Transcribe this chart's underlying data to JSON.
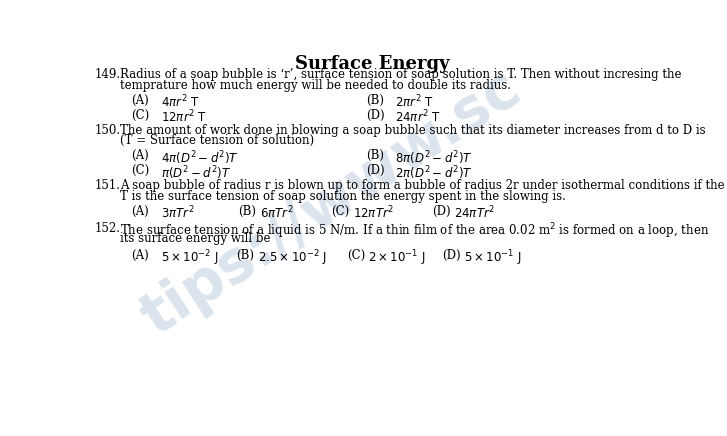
{
  "title": "Surface Energy",
  "background_color": "#ffffff",
  "watermark_color": "#b0c4d8",
  "q149_num": "149.",
  "q149_line1": "Radius of a soap bubble is ‘r’, surface tension of soap solution is T. Then without incresing the",
  "q149_line2": "temprature how much energy will be needed to double its radius.",
  "q149_A": "$4\\pi r^{2}$ T",
  "q149_B": "$2\\pi r^{2}$ T",
  "q149_C": "$12\\pi r^{2}$ T",
  "q149_D": "$24\\pi r^{2}$ T",
  "q150_num": "150.",
  "q150_line1": "The amount of work done in blowing a soap bubble such that its diameter increases from d to D is",
  "q150_line2": "(T = Surface tension of solution)",
  "q150_A": "$4\\pi\\left(D^{2}-d^{2}\\right)T$",
  "q150_B": "$8\\pi\\left(D^{2}-d^{2}\\right)T$",
  "q150_C": "$\\pi\\left(D^{2}-d^{2}\\right)T$",
  "q150_D": "$2\\pi\\left(D^{2}-d^{2}\\right)T$",
  "q151_num": "151.",
  "q151_line1": "A soap bubble of radius r is blown up to form a bubble of radius 2r under isothermal conditions if the",
  "q151_line2": "T is the surface tension of soap solution the energy spent in the slowing is.",
  "q151_A": "$3\\pi Tr^{2}$",
  "q151_B": "$6\\pi Tr^{2}$",
  "q151_C": "$12\\pi Tr^{2}$",
  "q151_D": "$24\\pi Tr^{2}$",
  "q152_num": "152.",
  "q152_line1": "The surface tension of a liquid is 5 N/m. If a thin film of the area 0.02 m$^{2}$ is formed on a loop, then",
  "q152_line2": "its surface energy will be",
  "q152_A": "$5\\times10^{-2}$ J",
  "q152_B": "$2.5\\times10^{-2}$ J",
  "q152_C": "$2\\times10^{-1}$ J",
  "q152_D": "$5\\times10^{-1}$ J",
  "fs_title": 13,
  "fs_body": 8.5,
  "fs_num": 8.5
}
